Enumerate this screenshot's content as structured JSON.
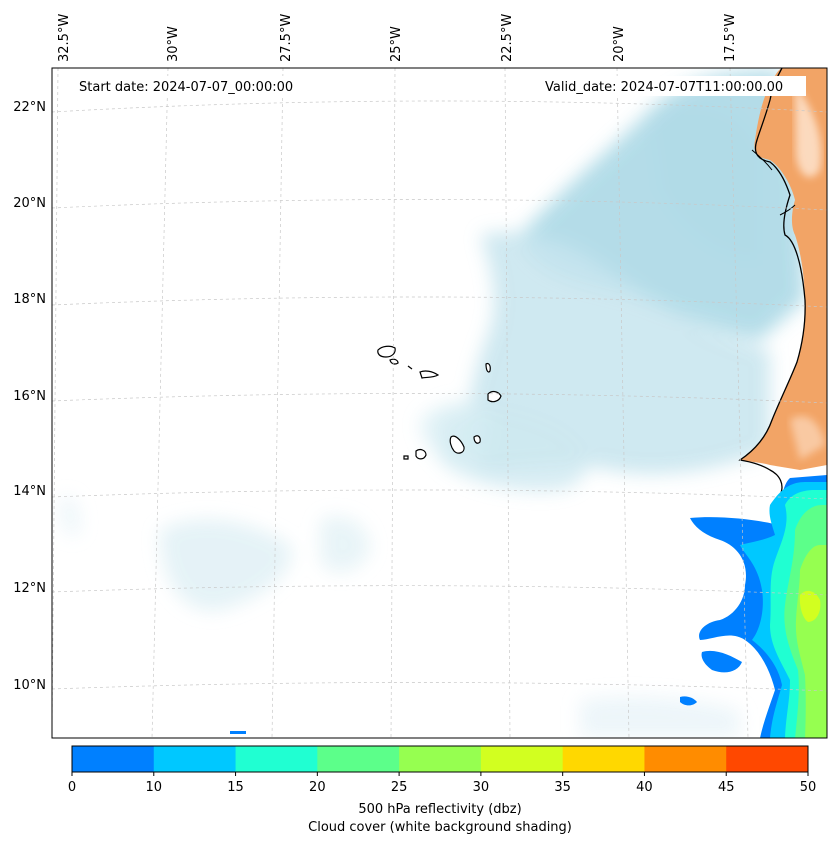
{
  "map": {
    "start_date": "Start date: 2024-07-07_00:00:00",
    "valid_date": "Valid_date: 2024-07-07T11:00:00.00",
    "top_lon_labels": [
      "32.5°W",
      "30°W",
      "27.5°W",
      "25°W",
      "22.5°W",
      "20°W",
      "17.5°W"
    ],
    "lat_labels": [
      "22°N",
      "20°N",
      "18°N",
      "16°N",
      "14°N",
      "12°N",
      "10°N"
    ],
    "colors": {
      "land": "#f2a466",
      "cloud": "#acd9e6",
      "coast": "#000000"
    }
  },
  "colorbar": {
    "ticks": [
      "0",
      "10",
      "15",
      "20",
      "25",
      "30",
      "35",
      "40",
      "45",
      "50"
    ],
    "colors": [
      "#0080ff",
      "#00c8ff",
      "#20ffd2",
      "#5cff8a",
      "#96ff50",
      "#d2ff20",
      "#ffd800",
      "#ff8c00",
      "#ff4800"
    ],
    "label_line1": "500 hPa reflectivity (dbz)",
    "label_line2": "Cloud cover (white background shading)"
  }
}
